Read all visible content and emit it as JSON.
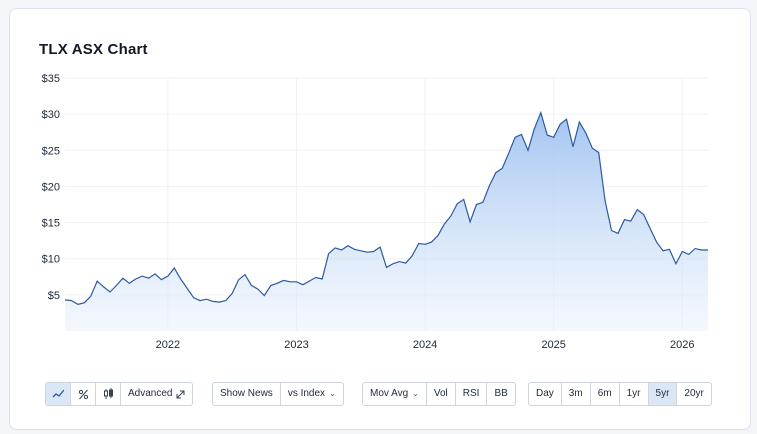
{
  "header": {
    "title": "TLX ASX Chart"
  },
  "toolbar": {
    "chart_type": {
      "advanced_label": "Advanced"
    },
    "news": {
      "show_news_label": "Show News",
      "vs_index_label": "vs Index"
    },
    "indicators": {
      "mov_avg_label": "Mov Avg",
      "vol_label": "Vol",
      "rsi_label": "RSI",
      "bb_label": "BB"
    },
    "ranges": [
      {
        "label": "Day"
      },
      {
        "label": "3m"
      },
      {
        "label": "6m"
      },
      {
        "label": "1yr"
      },
      {
        "label": "5yr",
        "active": true
      },
      {
        "label": "20yr"
      }
    ]
  },
  "chart_data": {
    "type": "area",
    "title": "TLX ASX Chart",
    "xlabel": "",
    "ylabel": "",
    "y_ticks": [
      "$35",
      "$30",
      "$25",
      "$20",
      "$15",
      "$10",
      "$5"
    ],
    "y_tick_values": [
      35,
      30,
      25,
      20,
      15,
      10,
      5
    ],
    "x_ticks": [
      "2022",
      "2023",
      "2024",
      "2025",
      "2026"
    ],
    "x_tick_values": [
      2022.0,
      2023.0,
      2024.0,
      2025.0,
      2026.0
    ],
    "ylim": [
      0,
      35
    ],
    "xlim": [
      2021.2,
      2026.2
    ],
    "grid": true,
    "line_color": "#2c5aa0",
    "fill_color": "#a9c8f0",
    "series": [
      {
        "x": [
          2021.2,
          2021.25,
          2021.3,
          2021.35,
          2021.4,
          2021.45,
          2021.5,
          2021.55,
          2021.6,
          2021.65,
          2021.7,
          2021.75,
          2021.8,
          2021.85,
          2021.9,
          2021.95,
          2022.0,
          2022.05,
          2022.1,
          2022.15,
          2022.2,
          2022.25,
          2022.3,
          2022.35,
          2022.4,
          2022.45,
          2022.5,
          2022.55,
          2022.6,
          2022.65,
          2022.7,
          2022.75,
          2022.8,
          2022.85,
          2022.9,
          2022.95,
          2023.0,
          2023.05,
          2023.1,
          2023.15,
          2023.2,
          2023.25,
          2023.3,
          2023.35,
          2023.4,
          2023.45,
          2023.5,
          2023.55,
          2023.6,
          2023.65,
          2023.7,
          2023.75,
          2023.8,
          2023.85,
          2023.9,
          2023.95,
          2024.0,
          2024.05,
          2024.1,
          2024.15,
          2024.2,
          2024.25,
          2024.3,
          2024.35,
          2024.4,
          2024.45,
          2024.5,
          2024.55,
          2024.6,
          2024.65,
          2024.7,
          2024.75,
          2024.8,
          2024.85,
          2024.9,
          2024.95,
          2025.0,
          2025.05,
          2025.1,
          2025.15,
          2025.2,
          2025.25,
          2025.3,
          2025.35,
          2025.4,
          2025.45,
          2025.5,
          2025.55,
          2025.6,
          2025.65,
          2025.7,
          2025.75,
          2025.8,
          2025.85,
          2025.9,
          2025.95,
          2026.0,
          2026.05,
          2026.1,
          2026.15,
          2026.2
        ],
        "y": [
          4.3,
          4.2,
          3.7,
          3.9,
          4.8,
          6.9,
          6.1,
          5.4,
          6.3,
          7.3,
          6.6,
          7.2,
          7.6,
          7.3,
          7.9,
          7.1,
          7.6,
          8.7,
          7.2,
          5.9,
          4.6,
          4.2,
          4.4,
          4.1,
          4.0,
          4.2,
          5.2,
          7.1,
          7.8,
          6.3,
          5.8,
          4.9,
          6.3,
          6.6,
          7.0,
          6.8,
          6.8,
          6.4,
          6.9,
          7.4,
          7.2,
          10.7,
          11.5,
          11.2,
          11.8,
          11.3,
          11.1,
          10.9,
          11.0,
          11.6,
          8.8,
          9.3,
          9.6,
          9.4,
          10.4,
          12.1,
          12.0,
          12.3,
          13.2,
          14.8,
          15.9,
          17.6,
          18.2,
          15.1,
          17.5,
          17.8,
          20.1,
          21.9,
          22.5,
          24.6,
          26.8,
          27.2,
          25.0,
          28.0,
          30.2,
          27.1,
          26.8,
          28.6,
          29.3,
          25.5,
          28.9,
          27.4,
          25.3,
          24.7,
          18.0,
          13.9,
          13.5,
          15.4,
          15.2,
          16.8,
          16.1,
          14.2,
          12.3,
          11.1,
          11.3,
          9.3,
          11.0,
          10.6,
          11.4,
          11.2,
          11.2
        ]
      }
    ]
  }
}
